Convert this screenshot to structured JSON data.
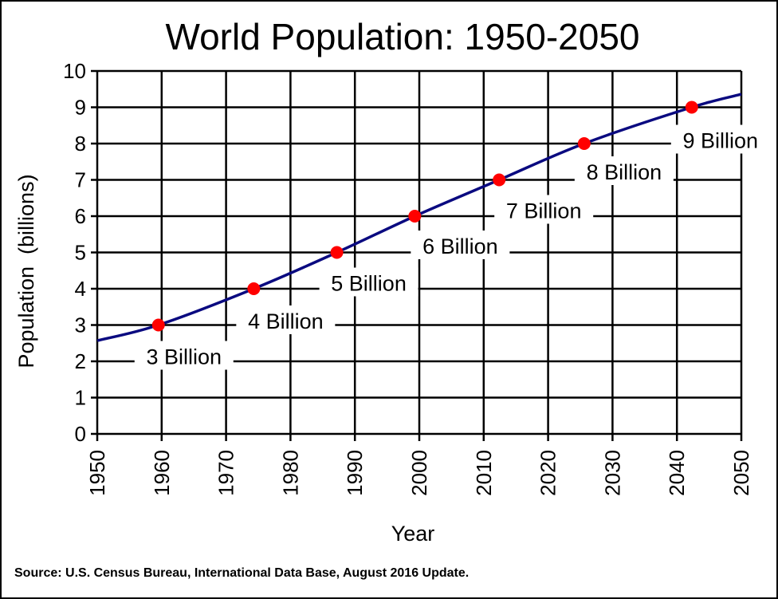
{
  "chart_data": {
    "type": "line",
    "title": "World Population: 1950-2050",
    "xlabel": "Year",
    "ylabel": "Population  (billions)",
    "xlim": [
      1950,
      2050
    ],
    "ylim": [
      0,
      10
    ],
    "grid": true,
    "x_ticks": [
      "1950",
      "1960",
      "1970",
      "1980",
      "1990",
      "2000",
      "2010",
      "2020",
      "2030",
      "2040",
      "2050"
    ],
    "y_ticks": [
      "0",
      "1",
      "2",
      "3",
      "4",
      "5",
      "6",
      "7",
      "8",
      "9",
      "10"
    ],
    "series": [
      {
        "x": [
          1950,
          1959.5,
          1974.3,
          1987.2,
          1999.3,
          2012.4,
          2025.6,
          2042.3,
          2050
        ],
        "y": [
          2.57,
          3,
          4,
          5,
          6,
          7,
          8,
          9,
          9.36
        ],
        "color": "#0A0A80"
      }
    ],
    "milestones": [
      {
        "x": 1959.5,
        "y": 3,
        "label": "3 Billion"
      },
      {
        "x": 1974.3,
        "y": 4,
        "label": "4 Billion"
      },
      {
        "x": 1987.2,
        "y": 5,
        "label": "5 Billion"
      },
      {
        "x": 1999.3,
        "y": 6,
        "label": "6 Billion"
      },
      {
        "x": 2012.4,
        "y": 7,
        "label": "7 Billion"
      },
      {
        "x": 2025.6,
        "y": 8,
        "label": "8 Billion"
      },
      {
        "x": 2042.3,
        "y": 9,
        "label": "9 Billion"
      }
    ],
    "marker_color": "#FF0000",
    "source": "Source: U.S. Census Bureau, International Data Base, August 2016 Update."
  }
}
